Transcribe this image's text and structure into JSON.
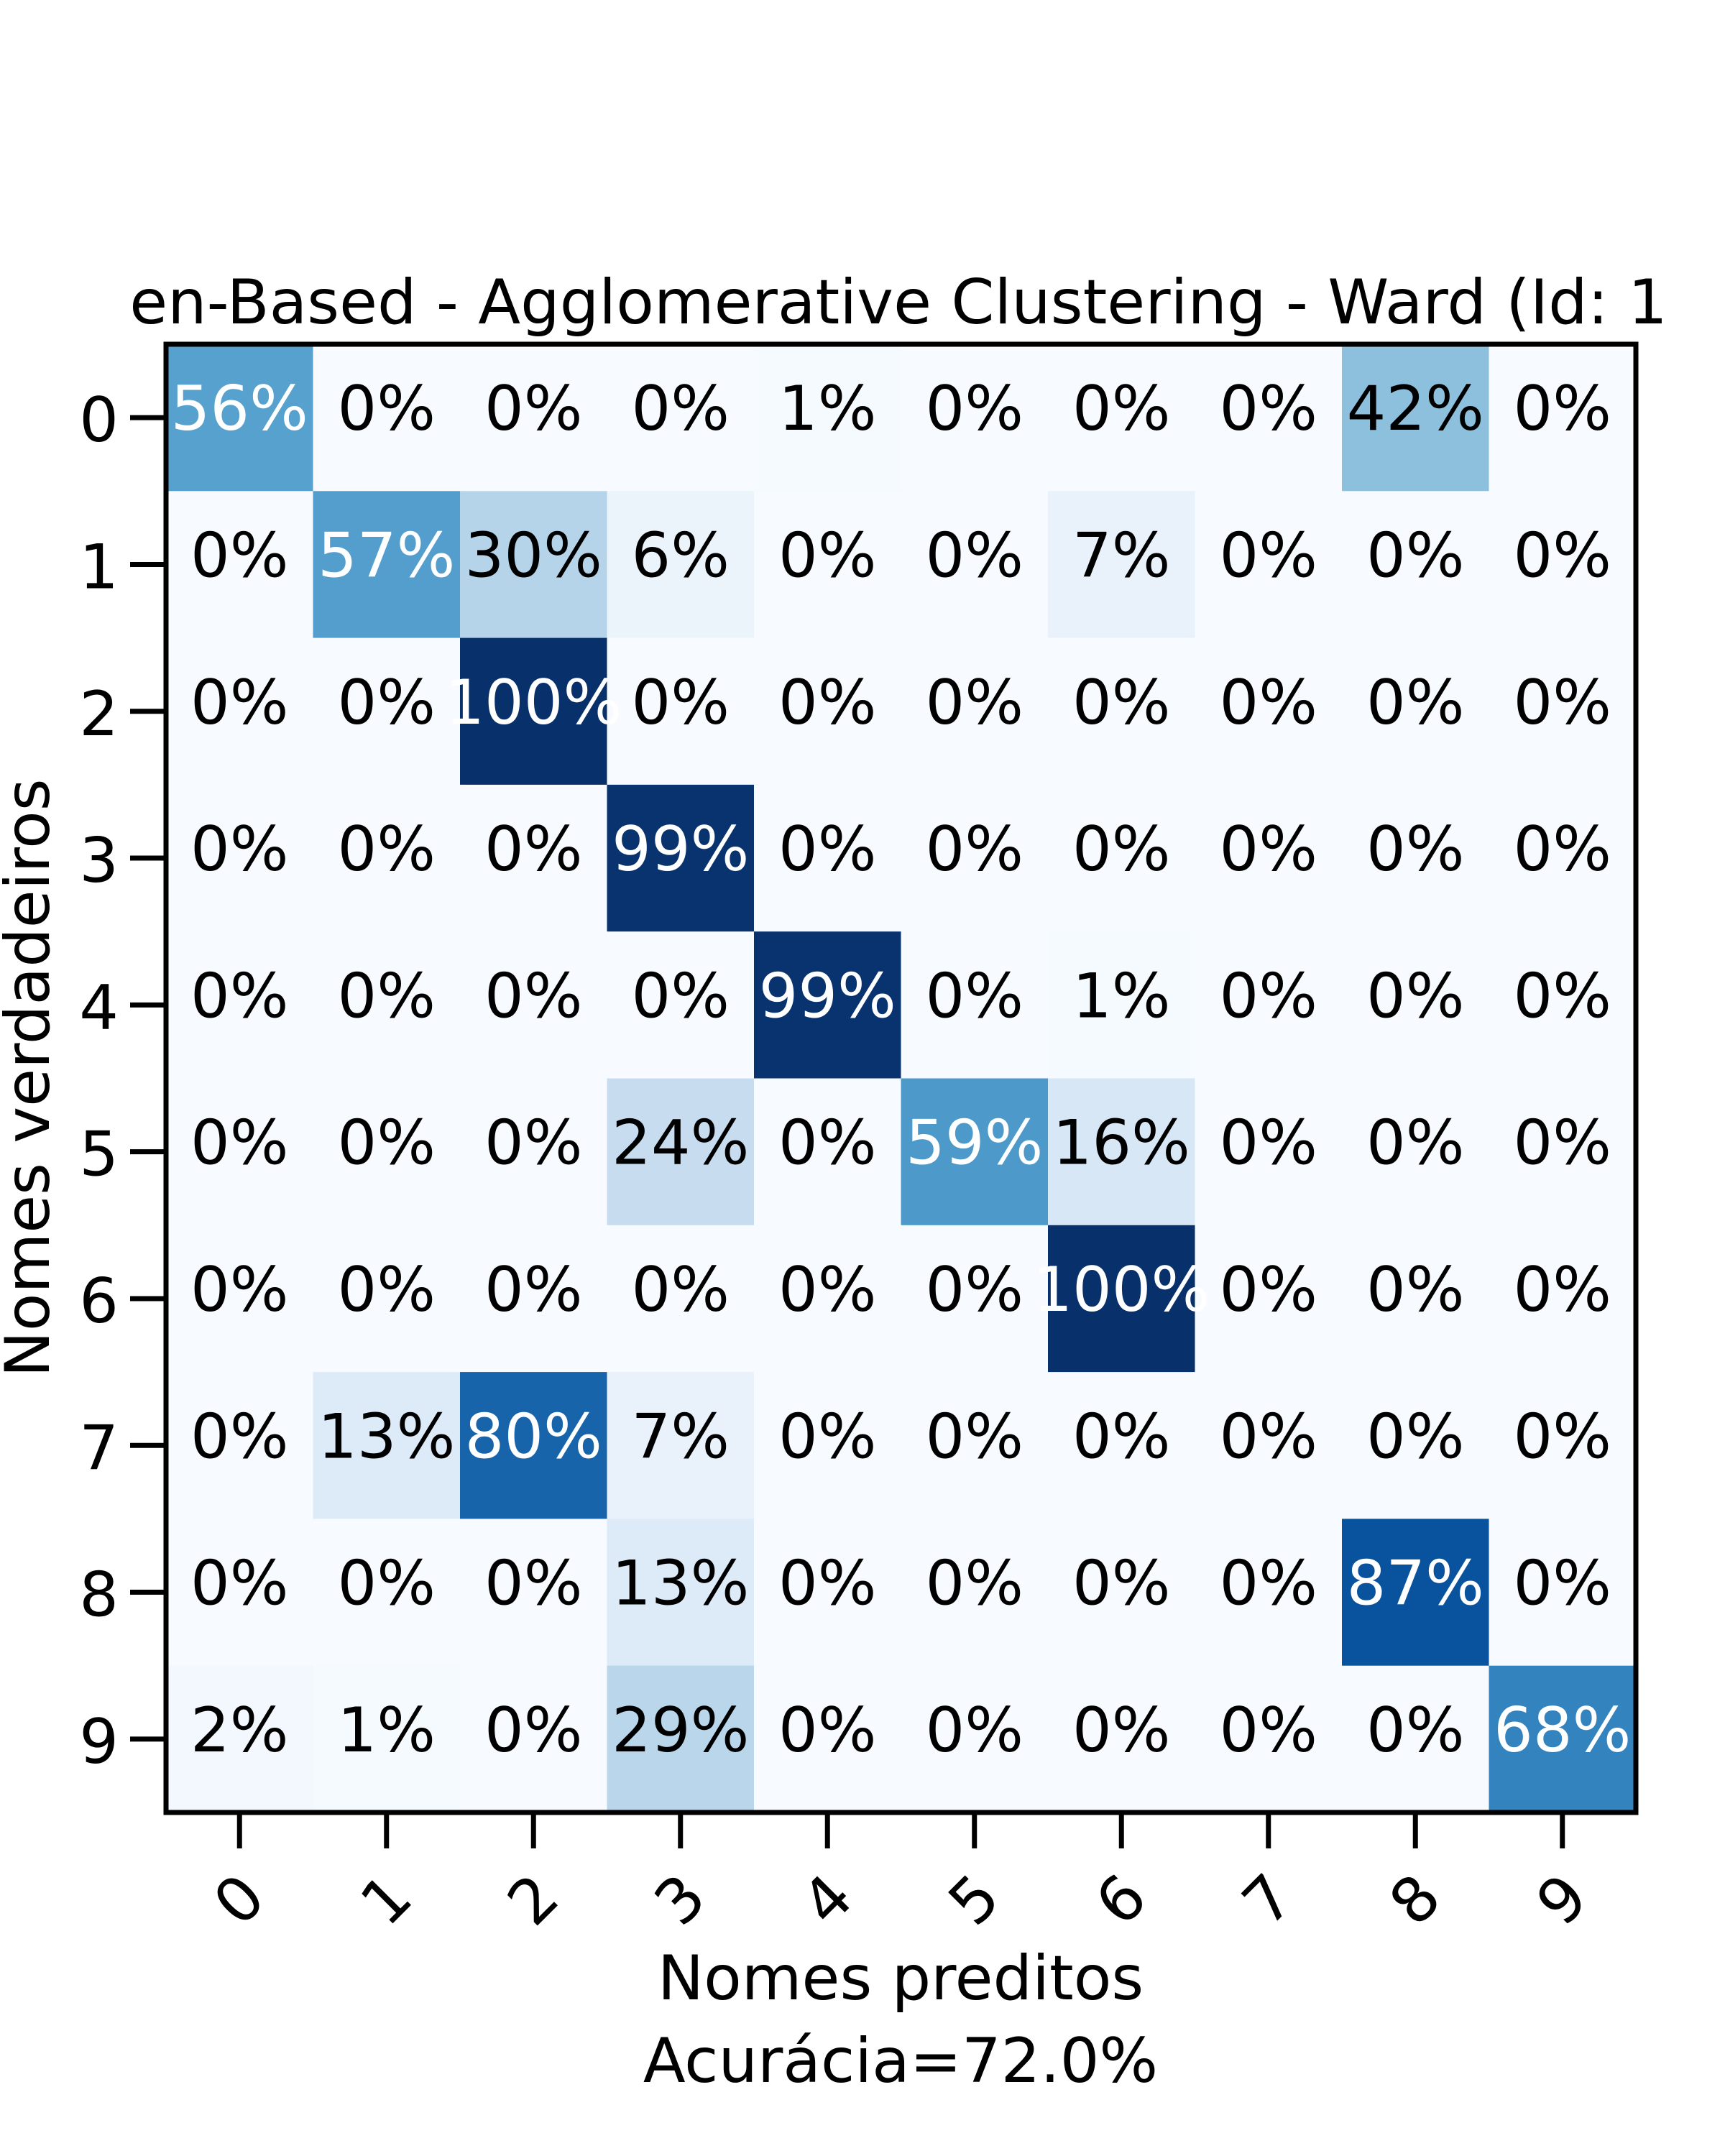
{
  "chart_data": {
    "type": "heatmap",
    "title": "en-Based - Agglomerative Clustering - Ward (Id: 1",
    "xlabel": "Nomes preditos",
    "xlabel_sub": "Acurácia=72.0%",
    "ylabel": "Nomes verdadeiros",
    "x_categories": [
      "0",
      "1",
      "2",
      "3",
      "4",
      "5",
      "6",
      "7",
      "8",
      "9"
    ],
    "y_categories": [
      "0",
      "1",
      "2",
      "3",
      "4",
      "5",
      "6",
      "7",
      "8",
      "9"
    ],
    "value_format": "percent",
    "colormap": "Blues",
    "values": [
      [
        56,
        0,
        0,
        0,
        1,
        0,
        0,
        0,
        42,
        0
      ],
      [
        0,
        57,
        30,
        6,
        0,
        0,
        7,
        0,
        0,
        0
      ],
      [
        0,
        0,
        100,
        0,
        0,
        0,
        0,
        0,
        0,
        0
      ],
      [
        0,
        0,
        0,
        99,
        0,
        0,
        0,
        0,
        0,
        0
      ],
      [
        0,
        0,
        0,
        0,
        99,
        0,
        1,
        0,
        0,
        0
      ],
      [
        0,
        0,
        0,
        24,
        0,
        59,
        16,
        0,
        0,
        0
      ],
      [
        0,
        0,
        0,
        0,
        0,
        0,
        100,
        0,
        0,
        0
      ],
      [
        0,
        13,
        80,
        7,
        0,
        0,
        0,
        0,
        0,
        0
      ],
      [
        0,
        0,
        0,
        13,
        0,
        0,
        0,
        0,
        87,
        0
      ],
      [
        2,
        1,
        0,
        29,
        0,
        0,
        0,
        0,
        0,
        68
      ]
    ],
    "cell_labels": [
      [
        "56%",
        "0%",
        "0%",
        "0%",
        "1%",
        "0%",
        "0%",
        "0%",
        "42%",
        "0%"
      ],
      [
        "0%",
        "57%",
        "30%",
        "6%",
        "0%",
        "0%",
        "7%",
        "0%",
        "0%",
        "0%"
      ],
      [
        "0%",
        "0%",
        "100%",
        "0%",
        "0%",
        "0%",
        "0%",
        "0%",
        "0%",
        "0%"
      ],
      [
        "0%",
        "0%",
        "0%",
        "99%",
        "0%",
        "0%",
        "0%",
        "0%",
        "0%",
        "0%"
      ],
      [
        "0%",
        "0%",
        "0%",
        "0%",
        "99%",
        "0%",
        "1%",
        "0%",
        "0%",
        "0%"
      ],
      [
        "0%",
        "0%",
        "0%",
        "24%",
        "0%",
        "59%",
        "16%",
        "0%",
        "0%",
        "0%"
      ],
      [
        "0%",
        "0%",
        "0%",
        "0%",
        "0%",
        "0%",
        "100%",
        "0%",
        "0%",
        "0%"
      ],
      [
        "0%",
        "13%",
        "80%",
        "7%",
        "0%",
        "0%",
        "0%",
        "0%",
        "0%",
        "0%"
      ],
      [
        "0%",
        "0%",
        "0%",
        "13%",
        "0%",
        "0%",
        "0%",
        "0%",
        "87%",
        "0%"
      ],
      [
        "2%",
        "1%",
        "0%",
        "29%",
        "0%",
        "0%",
        "0%",
        "0%",
        "0%",
        "68%"
      ]
    ],
    "grid": false,
    "legend": "none"
  }
}
